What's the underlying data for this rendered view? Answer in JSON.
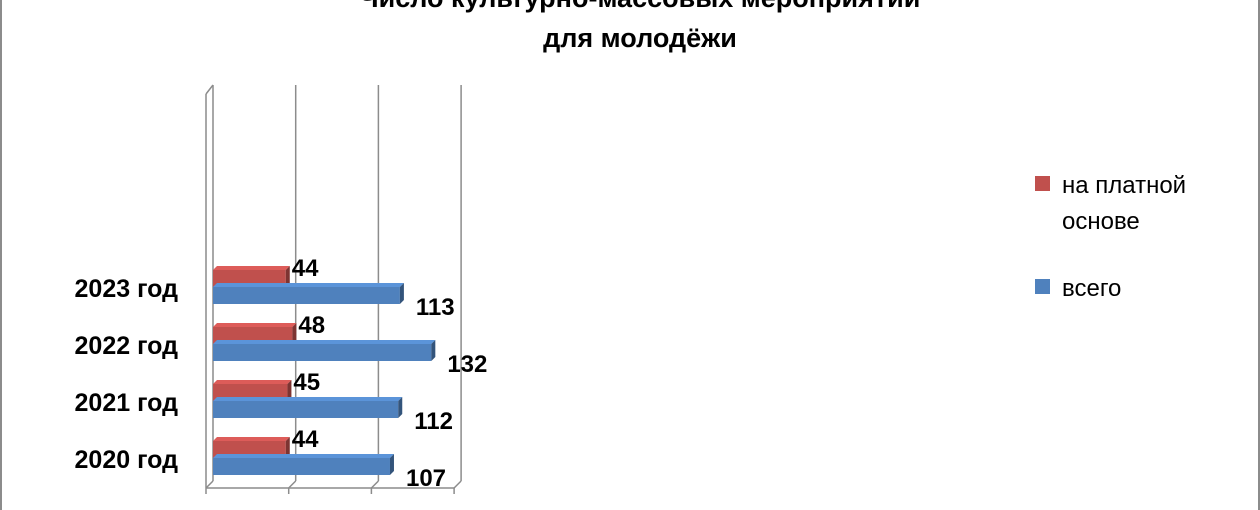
{
  "title_lines": [
    "Число культурно-массовых мероприятий",
    "для молодёжи"
  ],
  "legend": {
    "paid": {
      "label_lines": [
        "на платной",
        "основе"
      ],
      "color": "#c0504d"
    },
    "total": {
      "label": "всего",
      "color": "#4f81bd"
    }
  },
  "chart_data": {
    "type": "bar",
    "orientation": "horizontal",
    "categories": [
      "2023 год",
      "2022 год",
      "2021 год",
      "2020 год"
    ],
    "series": [
      {
        "name": "на платной основе",
        "values": [
          44,
          48,
          45,
          44
        ],
        "color": "#c0504d"
      },
      {
        "name": "всего",
        "values": [
          113,
          132,
          112,
          107
        ],
        "color": "#4f81bd"
      }
    ],
    "xlim": [
      0,
      150
    ],
    "grid": true,
    "legend_position": "right",
    "data_labels": true
  }
}
